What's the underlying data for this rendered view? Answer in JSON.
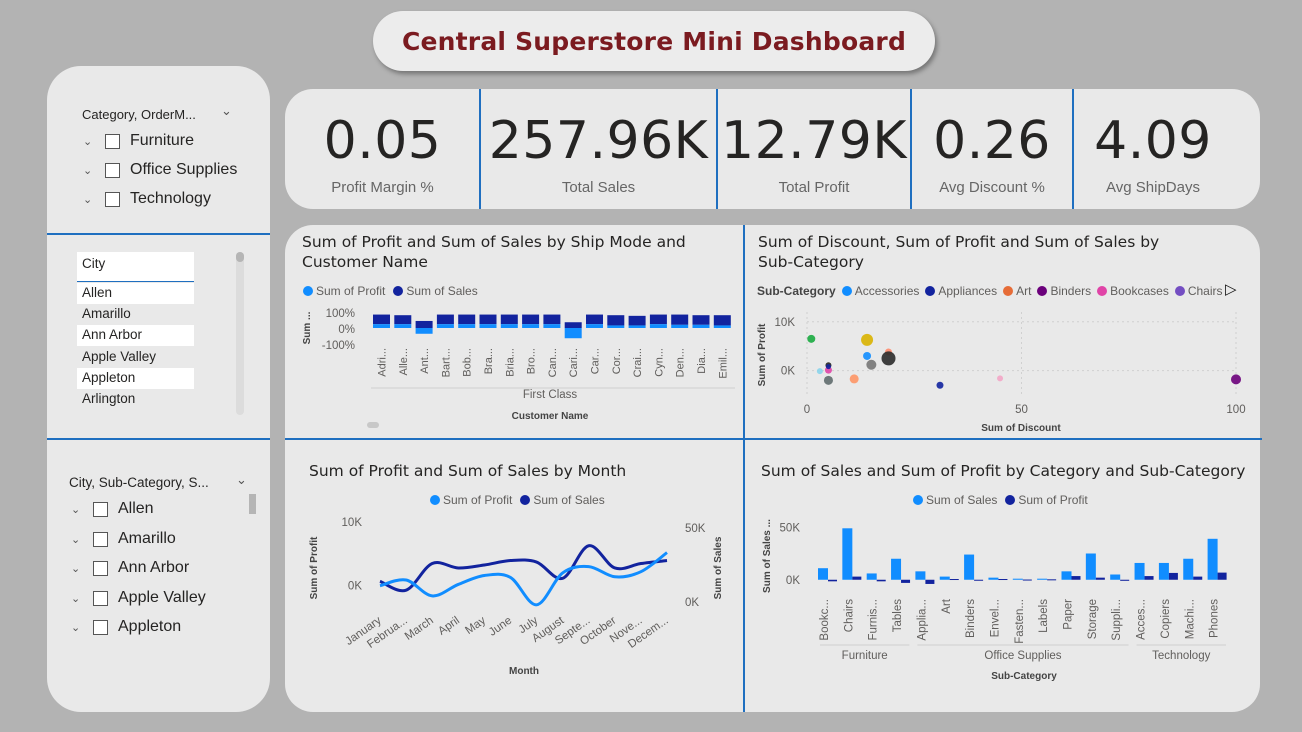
{
  "title": "Central Superstore Mini Dashboard",
  "kpis": [
    {
      "value": "0.05",
      "label": "Profit Margin %"
    },
    {
      "value": "257.96K",
      "label": "Total Sales"
    },
    {
      "value": "12.79K",
      "label": "Total Profit"
    },
    {
      "value": "0.26",
      "label": "Avg Discount %"
    },
    {
      "value": "4.09",
      "label": "Avg ShipDays"
    }
  ],
  "slicer_category": {
    "header": "Category, OrderM...",
    "items": [
      "Furniture",
      "Office Supplies",
      "Technology"
    ]
  },
  "slicer_city": {
    "header": "City",
    "items": [
      "Allen",
      "Amarillo",
      "Ann Arbor",
      "Apple Valley",
      "Appleton",
      "Arlington"
    ]
  },
  "slicer_city_sub": {
    "header": "City, Sub-Category, S...",
    "items": [
      "Allen",
      "Amarillo",
      "Ann Arbor",
      "Apple Valley",
      "Appleton"
    ]
  },
  "colors": {
    "light": "#118dff",
    "dark": "#12239e",
    "accent": "#1f6fc0",
    "title": "#7b1b20"
  },
  "chart_data": [
    {
      "id": "shipmode",
      "type": "bar",
      "title": "Sum of Profit and Sum of Sales by Ship Mode and Customer Name",
      "series": [
        {
          "name": "Sum of Profit"
        },
        {
          "name": "Sum of Sales"
        }
      ],
      "categories": [
        "Adri...",
        "Alle...",
        "Ant...",
        "Bart...",
        "Bob...",
        "Bra...",
        "Bria...",
        "Bro...",
        "Can...",
        "Cari...",
        "Car...",
        "Cor...",
        "Crai...",
        "Cyn...",
        "Den...",
        "Dia...",
        "Emil..."
      ],
      "group": "First Class",
      "xlabel": "Customer Name",
      "ylabel": "Sum ...",
      "yticks": [
        "100%",
        "0%",
        "-100%"
      ],
      "stack_pct": {
        "profit": [
          12,
          12,
          -18,
          12,
          12,
          12,
          12,
          12,
          12,
          -32,
          12,
          8,
          8,
          12,
          10,
          10,
          8
        ],
        "sales": [
          30,
          28,
          22,
          30,
          30,
          30,
          30,
          30,
          30,
          18,
          30,
          32,
          30,
          30,
          32,
          30,
          32
        ]
      }
    },
    {
      "id": "discount",
      "type": "scatter",
      "title": "Sum of Discount, Sum of Profit and Sum of Sales by Sub-Category",
      "legend_title": "Sub-Category",
      "legend": [
        {
          "name": "Accessories",
          "color": "#118dff"
        },
        {
          "name": "Appliances",
          "color": "#12239e"
        },
        {
          "name": "Art",
          "color": "#e66c37"
        },
        {
          "name": "Binders",
          "color": "#6b007b"
        },
        {
          "name": "Bookcases",
          "color": "#e044a7"
        },
        {
          "name": "Chairs",
          "color": "#744ec2"
        }
      ],
      "xlabel": "Sum of Discount",
      "ylabel": "Sum of Profit",
      "xticks": [
        "0",
        "50",
        "100"
      ],
      "yticks": [
        "10K",
        "0K"
      ],
      "xlim": [
        0,
        100
      ],
      "ylim": [
        -5000,
        12000
      ],
      "points": [
        {
          "x": 1,
          "y": 6500,
          "c": "#1aab40",
          "r": 4
        },
        {
          "x": 14,
          "y": 6300,
          "c": "#d9b300",
          "r": 6
        },
        {
          "x": 14,
          "y": 3000,
          "c": "#118dff",
          "r": 4
        },
        {
          "x": 19,
          "y": 3800,
          "c": "#ff8c6e",
          "r": 3.5
        },
        {
          "x": 19,
          "y": 2500,
          "c": "#2b2b2b",
          "r": 7
        },
        {
          "x": 15,
          "y": 1200,
          "c": "#777777",
          "r": 5
        },
        {
          "x": 5,
          "y": 1100,
          "c": "#252423",
          "r": 3
        },
        {
          "x": 5,
          "y": 100,
          "c": "#e044a7",
          "r": 3.5
        },
        {
          "x": 3,
          "y": -100,
          "c": "#8ad4eb",
          "r": 3
        },
        {
          "x": 11,
          "y": -1700,
          "c": "#fe9666",
          "r": 4.5
        },
        {
          "x": 5,
          "y": -2000,
          "c": "#5f6b6d",
          "r": 4.5
        },
        {
          "x": 5,
          "y": 800,
          "c": "#12239e",
          "r": 2.5
        },
        {
          "x": 31,
          "y": -3000,
          "c": "#12239e",
          "r": 3.5
        },
        {
          "x": 45,
          "y": -1600,
          "c": "#f3a6c6",
          "r": 3
        },
        {
          "x": 100,
          "y": -1800,
          "c": "#6b007b",
          "r": 5
        }
      ]
    },
    {
      "id": "month",
      "type": "line",
      "title": "Sum of Profit and Sum of Sales by Month",
      "categories": [
        "January",
        "Februa...",
        "March",
        "April",
        "May",
        "June",
        "July",
        "August",
        "Septe...",
        "October",
        "Nove...",
        "Decem..."
      ],
      "xlabel": "Month",
      "ylabel": "Sum of Profit",
      "y2label": "Sum of Sales",
      "yticks": [
        "10K",
        "0K"
      ],
      "y2ticks": [
        "50K",
        "0K"
      ],
      "ylim": [
        -3500,
        10000
      ],
      "y2lim": [
        -4000,
        54000
      ],
      "series": [
        {
          "name": "Sum of Profit",
          "values": [
            -6,
            900,
            -1600,
            200,
            1600,
            1300,
            -3000,
            2000,
            3000,
            1400,
            2200,
            5200
          ]
        },
        {
          "name": "Sum of Sales",
          "values": [
            14000,
            8000,
            26000,
            23000,
            25000,
            28000,
            27000,
            16000,
            38000,
            23000,
            26000,
            28000
          ]
        }
      ]
    },
    {
      "id": "category",
      "type": "bar",
      "title": "Sum of Sales and Sum of Profit by Category and Sub-Category",
      "series": [
        {
          "name": "Sum of Sales"
        },
        {
          "name": "Sum of Profit"
        }
      ],
      "groups": [
        {
          "name": "Furniture",
          "items": [
            "Bookc...",
            "Chairs",
            "Furnis...",
            "Tables"
          ]
        },
        {
          "name": "Office Supplies",
          "items": [
            "Applia...",
            "Art",
            "Binders",
            "Envel...",
            "Fasten...",
            "Labels",
            "Paper",
            "Storage",
            "Suppli..."
          ]
        },
        {
          "name": "Technology",
          "items": [
            "Acces...",
            "Copiers",
            "Machi...",
            "Phones"
          ]
        }
      ],
      "xlabel": "Sub-Category",
      "ylabel": "Sum of Sales ...",
      "yticks": [
        "50K",
        "0K"
      ],
      "ylim": [
        -5000,
        55000
      ],
      "sales": [
        11000,
        49000,
        6000,
        20000,
        8000,
        3000,
        24000,
        2000,
        1000,
        1000,
        8000,
        25000,
        5000,
        16000,
        16000,
        20000,
        39000
      ],
      "profit": [
        -1500,
        3000,
        -1500,
        -3000,
        -4000,
        700,
        -300,
        700,
        200,
        400,
        3500,
        2000,
        -1000,
        3500,
        6500,
        3000,
        6800
      ]
    }
  ]
}
